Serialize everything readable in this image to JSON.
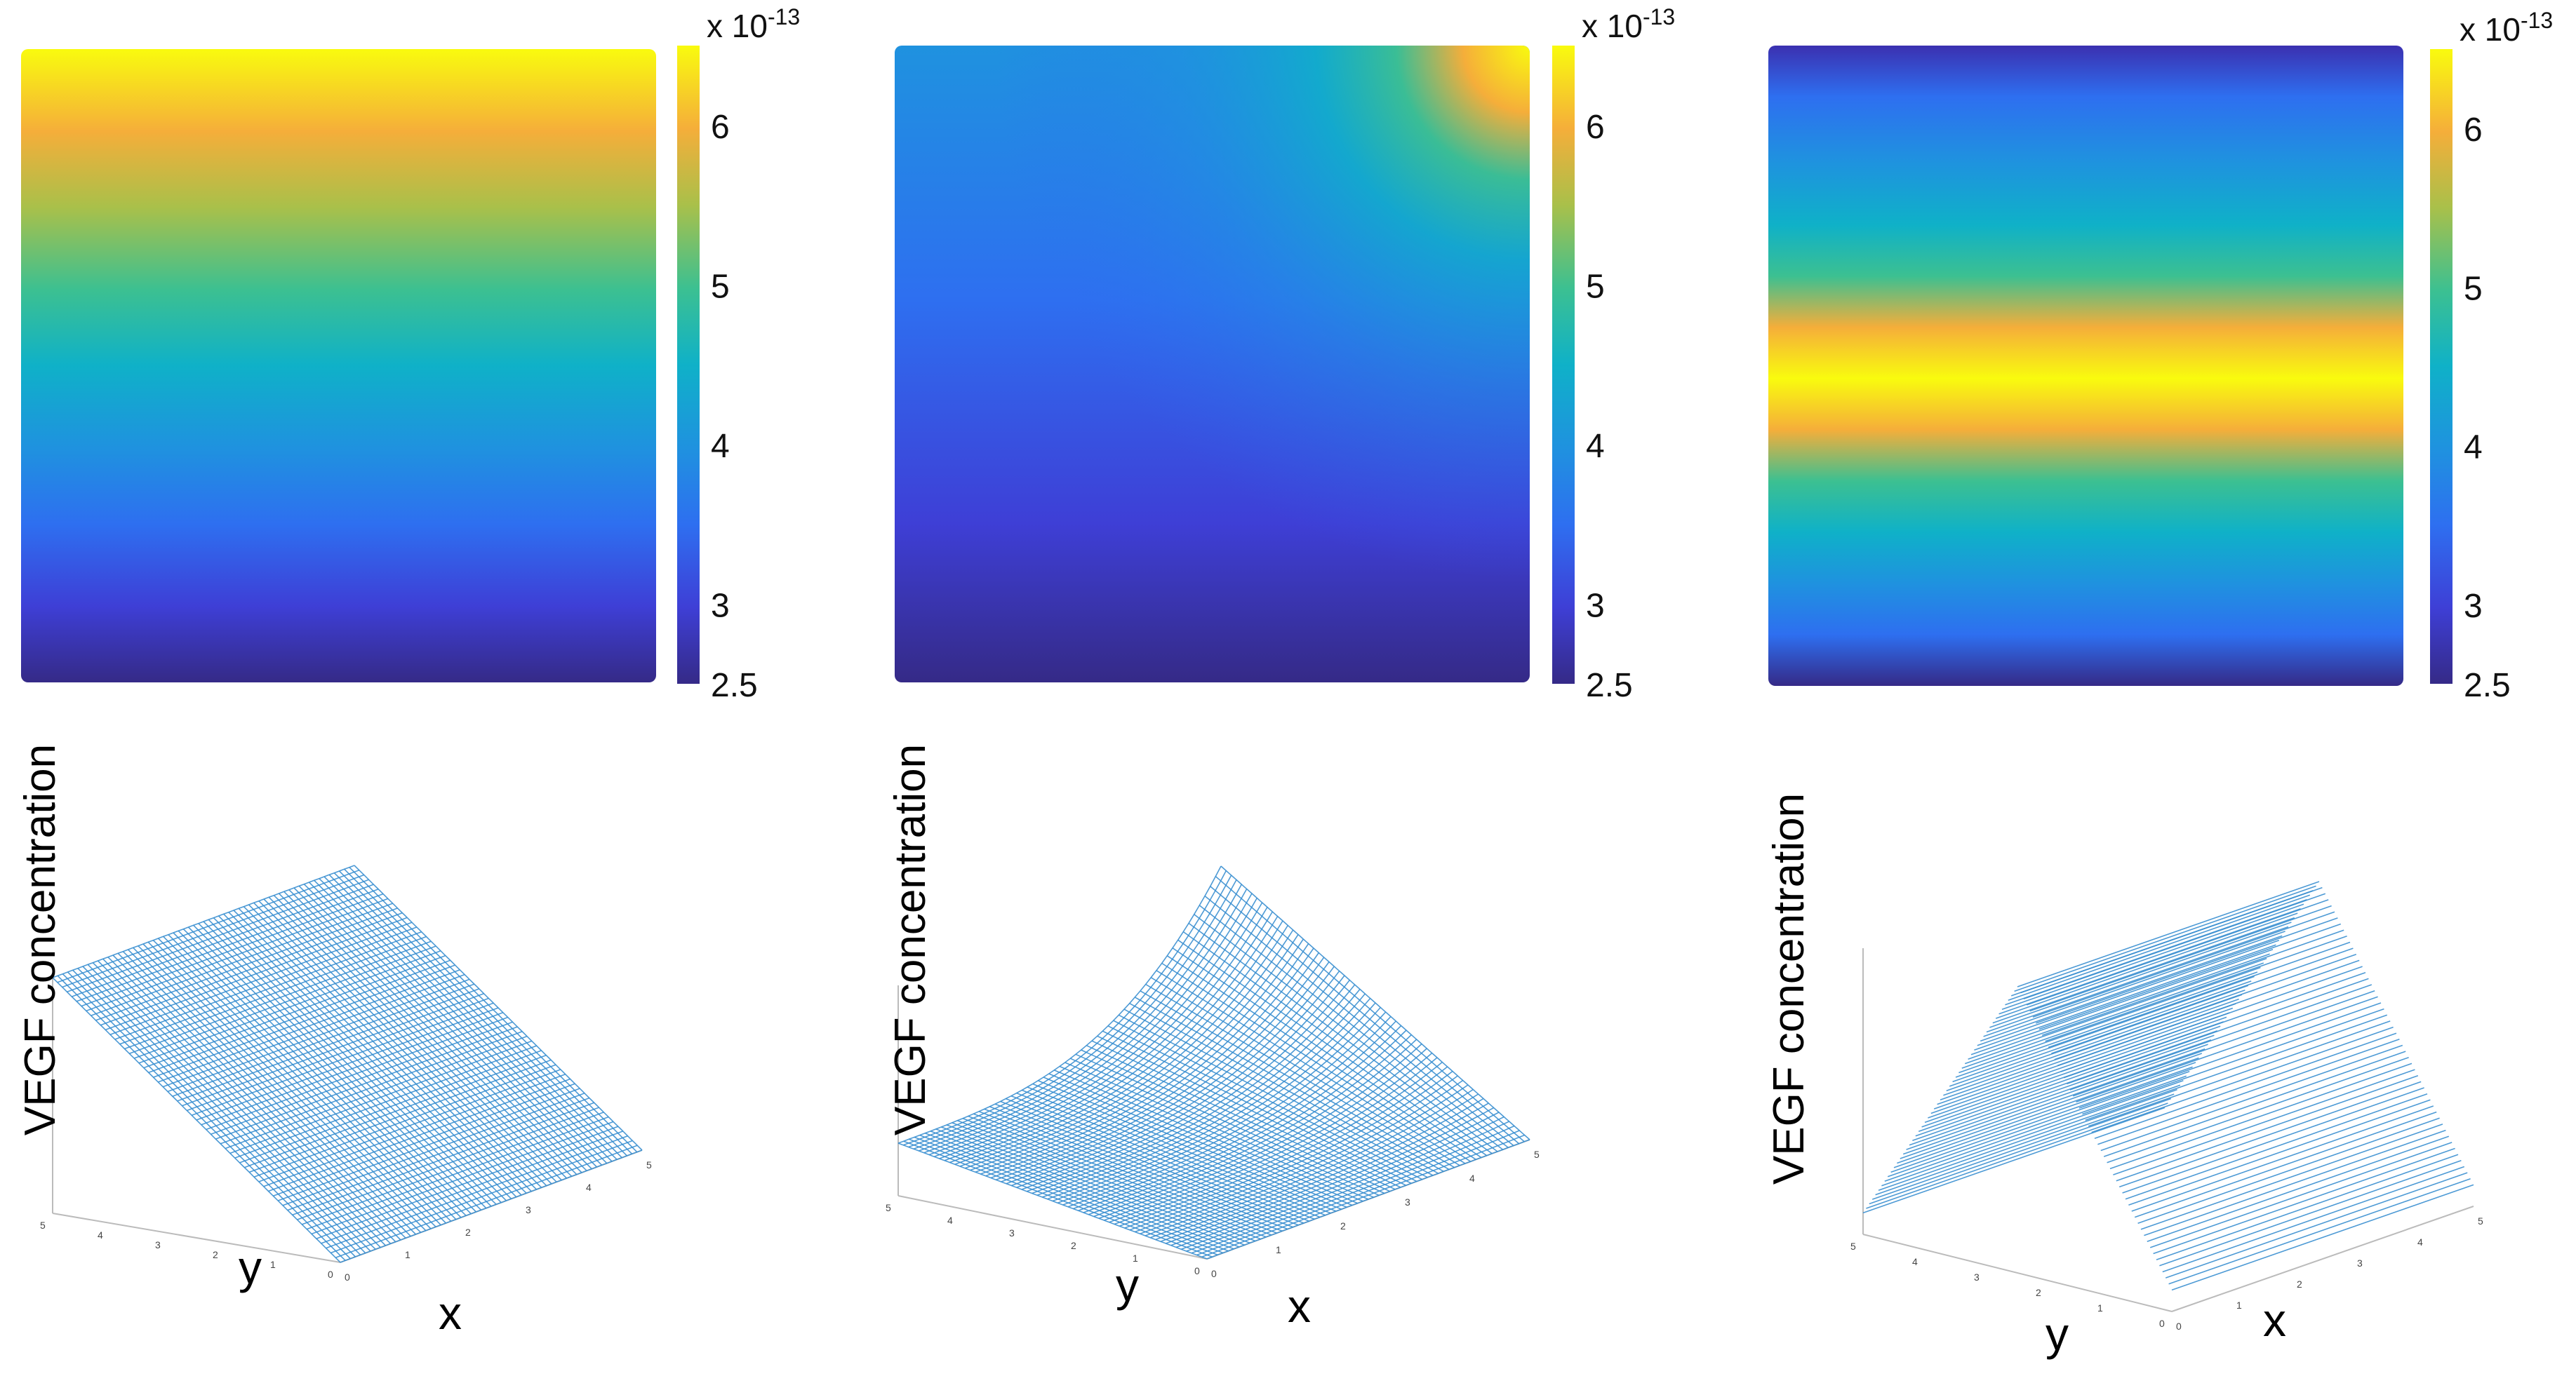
{
  "colorbar": {
    "exponent_label": "x 10",
    "exponent_power": "-13",
    "ticks": [
      2.5,
      3,
      4,
      5,
      6
    ],
    "range": [
      2.5,
      6.5
    ]
  },
  "surface_labels": {
    "zlabel": "VEGF concentration",
    "xlabel": "x",
    "ylabel": "y",
    "small_axis_ticks": [
      "0",
      "1",
      "2",
      "3",
      "4",
      "5"
    ]
  },
  "colors": {
    "mesh": "#3a8fd0",
    "mesh_light": "#9ecbe9",
    "axis": "#bbbbbb"
  },
  "chart_data": [
    {
      "type": "heatmap",
      "description_key": "panel-1",
      "pattern": "linear in y, increasing upward",
      "x_range": [
        0,
        5
      ],
      "y_range": [
        0,
        5
      ],
      "value_range": [
        2.5,
        6.5
      ],
      "colormap": "parula"
    },
    {
      "type": "heatmap",
      "description_key": "panel-2",
      "pattern": "radial peak at top-right corner (x=5, y=5)",
      "x_range": [
        0,
        5
      ],
      "y_range": [
        0,
        5
      ],
      "value_range": [
        2.5,
        6.5
      ],
      "colormap": "parula"
    },
    {
      "type": "heatmap",
      "description_key": "panel-3",
      "pattern": "tent profile in y, peak at y=2.5",
      "x_range": [
        0,
        5
      ],
      "y_range": [
        0,
        5
      ],
      "value_range": [
        2.5,
        6.5
      ],
      "colormap": "parula"
    },
    {
      "type": "surface",
      "description_key": "panel-4",
      "pattern": "planar, increasing in y",
      "x_range": [
        0,
        5
      ],
      "y_range": [
        0,
        5
      ],
      "z_range": [
        2.5,
        6.5
      ]
    },
    {
      "type": "surface",
      "description_key": "panel-5",
      "pattern": "peak at corner (5,5), 3.5 at (0,5), 2.5 at y=0",
      "x_range": [
        0,
        5
      ],
      "y_range": [
        0,
        5
      ],
      "z_range": [
        2.5,
        6.5
      ]
    },
    {
      "type": "surface",
      "description_key": "panel-6",
      "pattern": "ridge along y=2.5",
      "x_range": [
        0,
        5
      ],
      "y_range": [
        0,
        5
      ],
      "z_range": [
        2,
        6
      ]
    }
  ]
}
